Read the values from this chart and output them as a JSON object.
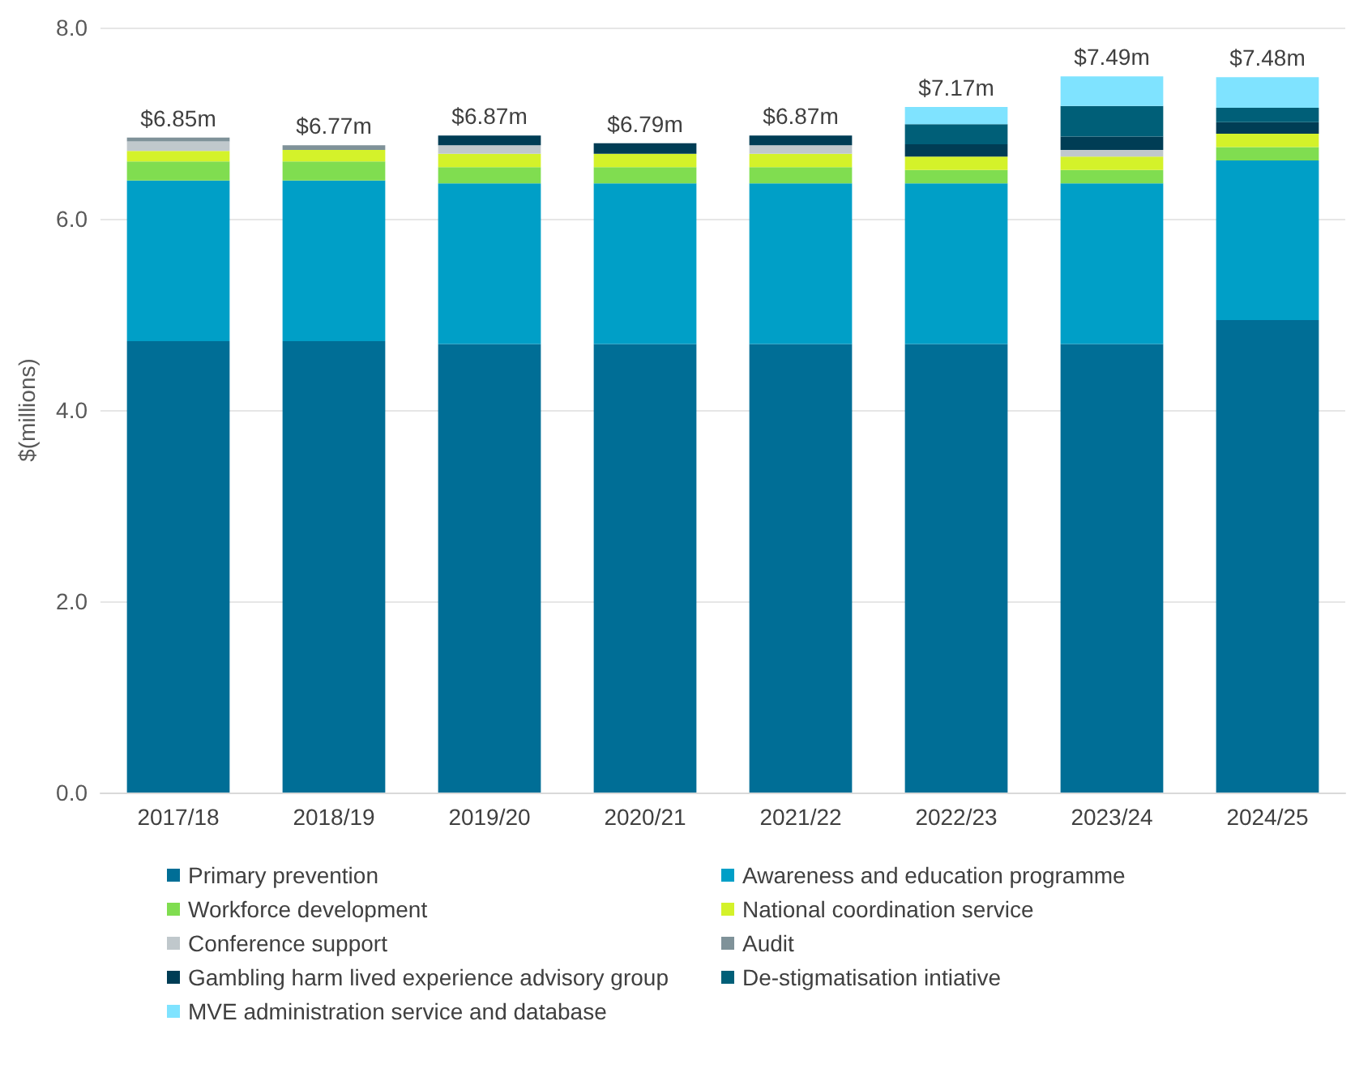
{
  "chart_data": {
    "type": "bar",
    "stacked": true,
    "ylabel": "$(millions)",
    "categories": [
      "2017/18",
      "2018/19",
      "2019/20",
      "2020/21",
      "2021/22",
      "2022/23",
      "2023/24",
      "2024/25"
    ],
    "series": [
      {
        "name": "Primary prevention",
        "color": "#006e96",
        "values": [
          4.72,
          4.72,
          4.69,
          4.69,
          4.69,
          4.69,
          4.69,
          4.94
        ]
      },
      {
        "name": "Awareness and education programme",
        "color": "#009fc7",
        "values": [
          1.68,
          1.68,
          1.68,
          1.68,
          1.68,
          1.68,
          1.68,
          1.67
        ]
      },
      {
        "name": "Workforce development",
        "color": "#80dd50",
        "values": [
          0.2,
          0.2,
          0.17,
          0.17,
          0.17,
          0.14,
          0.14,
          0.14
        ]
      },
      {
        "name": "National coordination service",
        "color": "#d4f22a",
        "values": [
          0.11,
          0.12,
          0.14,
          0.14,
          0.14,
          0.14,
          0.14,
          0.14
        ]
      },
      {
        "name": "Conference support",
        "color": "#c0c8cc",
        "values": [
          0.1,
          null,
          0.09,
          null,
          0.09,
          null,
          0.07,
          null
        ]
      },
      {
        "name": "Audit",
        "color": "#7f9299",
        "values": [
          0.04,
          0.05,
          null,
          null,
          null,
          null,
          null,
          null
        ]
      },
      {
        "name": "Gambling harm lived experience advisory group",
        "color": "#003d55",
        "values": [
          null,
          null,
          0.1,
          0.11,
          0.1,
          0.13,
          0.14,
          0.12
        ]
      },
      {
        "name": "De-stigmatisation intiative",
        "color": "#005f78",
        "values": [
          null,
          null,
          null,
          null,
          null,
          0.21,
          0.32,
          0.15
        ]
      },
      {
        "name": "MVE administration service and database",
        "color": "#7fe3ff",
        "values": [
          null,
          null,
          null,
          null,
          null,
          0.18,
          0.31,
          0.32
        ]
      }
    ],
    "totals": [
      "$6.85m",
      "$6.77m",
      "$6.87m",
      "$6.79m",
      "$6.87m",
      "$7.17m",
      "$7.49m",
      "$7.48m"
    ],
    "ylim": [
      0,
      8
    ],
    "yticks": [
      {
        "value": 0,
        "label": "0.0"
      },
      {
        "value": 2,
        "label": "2.0"
      },
      {
        "value": 4,
        "label": "4.0"
      },
      {
        "value": 6,
        "label": "6.0"
      },
      {
        "value": 8,
        "label": "8.0"
      }
    ],
    "grid": "y",
    "legend": "bottom"
  }
}
